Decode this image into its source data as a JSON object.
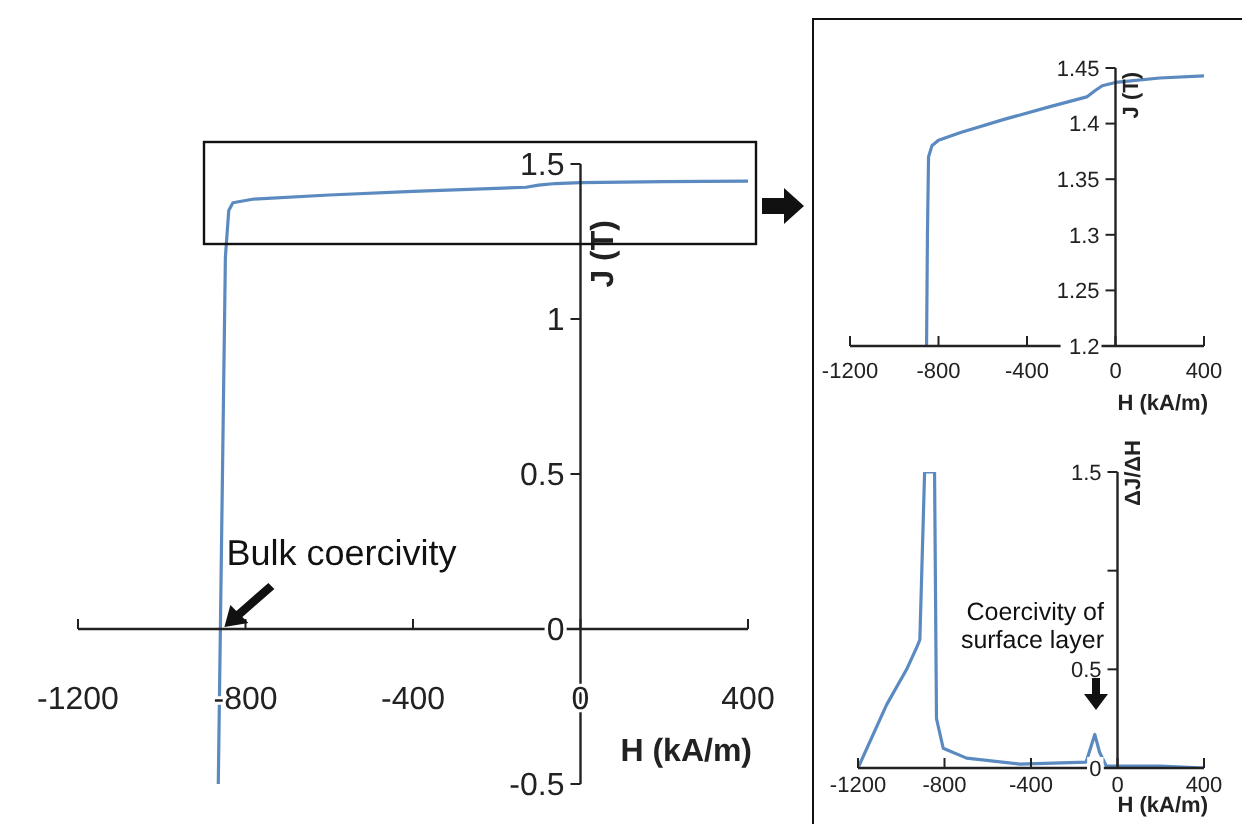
{
  "chart_data": [
    {
      "type": "line",
      "xlabel": "H (kA/m)",
      "ylabel": "J (T)",
      "xlim": [
        -1200,
        400
      ],
      "ylim": [
        -0.5,
        1.5
      ],
      "xticks": [
        -1200,
        -800,
        -400,
        0,
        400
      ],
      "yticks": [
        -0.5,
        0,
        0.5,
        1,
        1.5
      ],
      "series": [
        {
          "color": "#5b8ac0",
          "x": [
            400,
            200,
            0,
            -60,
            -100,
            -130,
            -400,
            -600,
            -780,
            -830,
            -840,
            -848,
            -855,
            -860,
            -865
          ],
          "values": [
            1.445,
            1.443,
            1.44,
            1.437,
            1.432,
            1.425,
            1.412,
            1.4,
            1.387,
            1.375,
            1.35,
            1.2,
            0.5,
            0,
            -0.5
          ]
        }
      ],
      "annotations": [
        {
          "text": "Bulk coercivity",
          "x": -860,
          "y": 0
        }
      ]
    },
    {
      "type": "line",
      "xlabel": "H (kA/m)",
      "ylabel": "J (T)",
      "xlim": [
        -1200,
        400
      ],
      "ylim": [
        1.2,
        1.45
      ],
      "xticks": [
        -1200,
        -800,
        -400,
        0,
        400
      ],
      "yticks": [
        1.2,
        1.25,
        1.3,
        1.35,
        1.4,
        1.45
      ],
      "series": [
        {
          "color": "#5b8ac0",
          "x": [
            400,
            200,
            0,
            -60,
            -90,
            -130,
            -300,
            -500,
            -700,
            -800,
            -830,
            -845,
            -850,
            -854
          ],
          "values": [
            1.443,
            1.441,
            1.437,
            1.434,
            1.43,
            1.424,
            1.415,
            1.404,
            1.392,
            1.385,
            1.38,
            1.37,
            1.3,
            1.2
          ]
        }
      ]
    },
    {
      "type": "line",
      "xlabel": "H (kA/m)",
      "ylabel": "ΔJ/ΔH",
      "xlim": [
        -1200,
        400
      ],
      "ylim": [
        0,
        1.5
      ],
      "xticks": [
        -1200,
        -800,
        -400,
        0,
        400
      ],
      "yticks": [
        0,
        0.5,
        {
          "value": 1,
          "label": null
        },
        1.5
      ],
      "series": [
        {
          "color": "#5b8ac0",
          "x": [
            -1200,
            -1068,
            -975,
            -929,
            -914,
            -892,
            -846,
            -837,
            -806,
            -698,
            -452,
            -145,
            -105,
            -83,
            -52,
            0,
            200,
            400
          ],
          "values": [
            0,
            0.32,
            0.5,
            0.61,
            0.65,
            1.5,
            1.5,
            0.25,
            0.1,
            0.05,
            0.02,
            0.03,
            0.17,
            0.08,
            0.01,
            0.01,
            0.01,
            0
          ]
        }
      ],
      "annotations": [
        "Coercivity of surface layer"
      ]
    }
  ]
}
